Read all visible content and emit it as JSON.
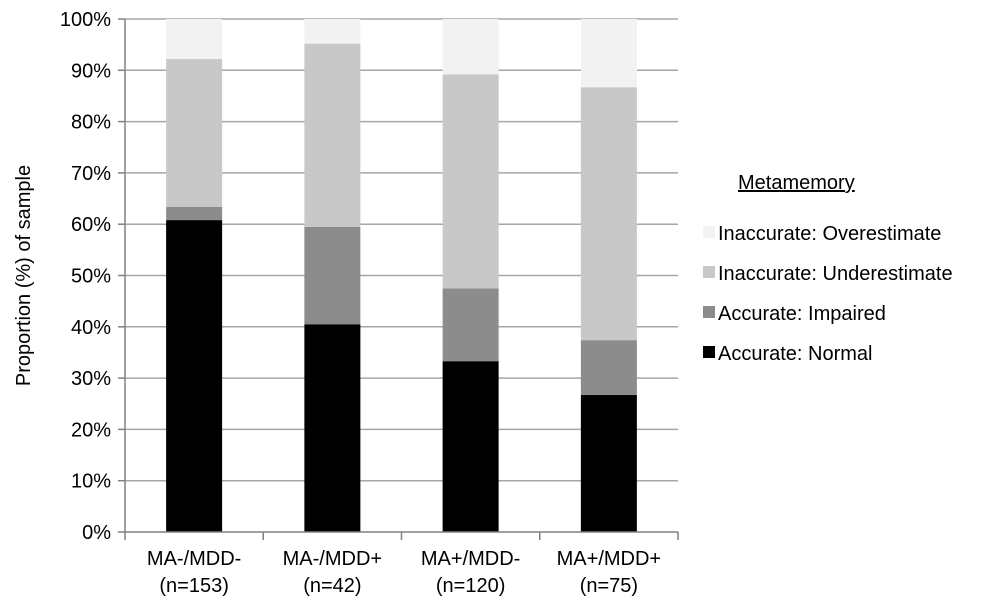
{
  "chart_data": {
    "type": "bar",
    "stacked": true,
    "title": "",
    "xlabel": "",
    "ylabel": "Proportion (%) of sample",
    "ylim": [
      0,
      100
    ],
    "yticks": [
      "0%",
      "10%",
      "20%",
      "30%",
      "40%",
      "50%",
      "60%",
      "70%",
      "80%",
      "90%",
      "100%"
    ],
    "categories": [
      [
        "MA-/MDD-",
        "(n=153)"
      ],
      [
        "MA-/MDD+",
        "(n=42)"
      ],
      [
        "MA+/MDD-",
        "(n=120)"
      ],
      [
        "MA+/MDD+",
        "(n=75)"
      ]
    ],
    "legend_title": "Metamemory",
    "legend_position": "right",
    "series": [
      {
        "name": "Accurate: Normal",
        "color": "#000000",
        "values": [
          60.8,
          40.5,
          33.3,
          26.7
        ]
      },
      {
        "name": "Accurate: Impaired",
        "color": "#8c8c8c",
        "values": [
          2.6,
          19.0,
          14.2,
          10.7
        ]
      },
      {
        "name": "Inaccurate: Underestimate",
        "color": "#c8c8c8",
        "values": [
          28.8,
          35.7,
          41.7,
          49.3
        ]
      },
      {
        "name": "Inaccurate: Overestimate",
        "color": "#f2f2f2",
        "values": [
          7.8,
          4.8,
          10.8,
          13.3
        ]
      }
    ]
  }
}
